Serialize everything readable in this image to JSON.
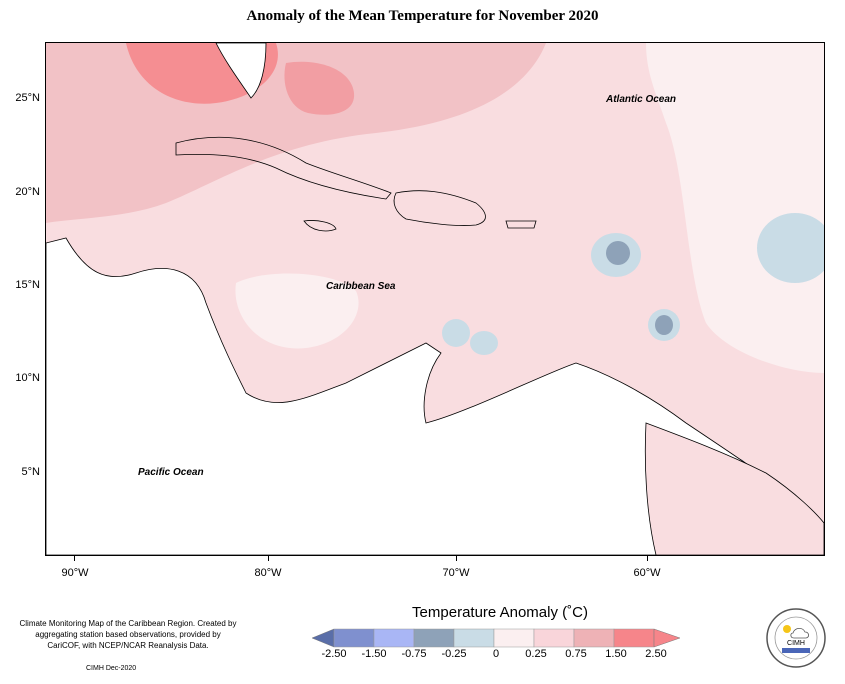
{
  "title": "Anomaly of the Mean Temperature for November 2020",
  "map": {
    "x_ticks": [
      "90°W",
      "80°W",
      "70°W",
      "60°W"
    ],
    "y_ticks": [
      "25°N",
      "20°N",
      "15°N",
      "10°N",
      "5°N"
    ],
    "labels": {
      "atlantic": "Atlantic Ocean",
      "caribbean": "Caribbean Sea",
      "pacific": "Pacific Ocean"
    },
    "colors": {
      "land": "#ffffff",
      "coast": "#000000"
    }
  },
  "legend": {
    "title": "Temperature Anomaly (˚C)",
    "ticks": [
      "-2.50",
      "-1.50",
      "-0.75",
      "-0.25",
      "0",
      "0.25",
      "0.75",
      "1.50",
      "2.50"
    ],
    "colors": [
      "#5a6ea8",
      "#7f90cf",
      "#a9b6f5",
      "#8ea2b8",
      "#c9dce6",
      "#fbeff0",
      "#f9d5da",
      "#eeb2b6",
      "#f6858a"
    ]
  },
  "footer": {
    "note": "Climate Monitoring Map of the Caribbean Region. Created by aggregating station based observations, provided by CariCOF, with NCEP/NCAR Reanalysis Data.",
    "credit": "CIMH Dec-2020"
  },
  "logo": {
    "text": "CIMH"
  }
}
